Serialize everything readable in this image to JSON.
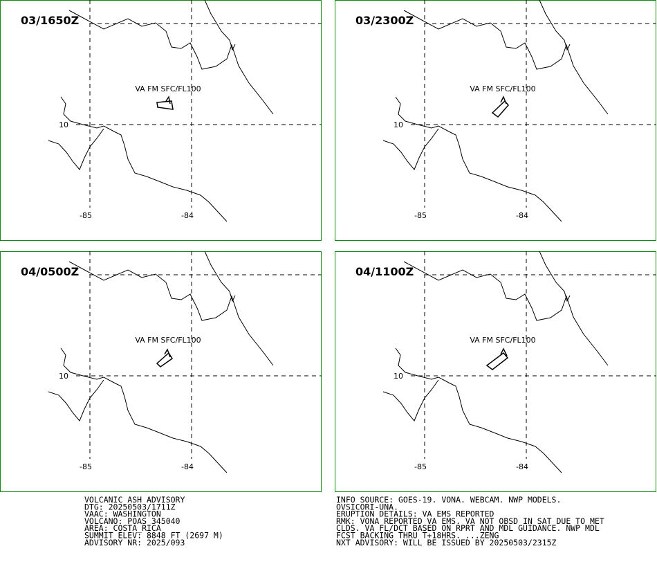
{
  "panels": [
    {
      "time": "03/1650Z",
      "layer": "VA FM SFC/FL100",
      "lat_label": "10",
      "lon_labels": [
        "-85",
        "-84"
      ]
    },
    {
      "time": "03/2300Z",
      "layer": "VA FM SFC/FL100",
      "lat_label": "10",
      "lon_labels": [
        "-85",
        "-84"
      ]
    },
    {
      "time": "04/0500Z",
      "layer": "VA FM SFC/FL100",
      "lat_label": "10",
      "lon_labels": [
        "-85",
        "-84"
      ]
    },
    {
      "time": "04/1100Z",
      "layer": "VA FM SFC/FL100",
      "lat_label": "10",
      "lon_labels": [
        "-85",
        "-84"
      ]
    }
  ],
  "advisory": {
    "left": [
      "VOLCANIC ASH ADVISORY",
      "DTG: 20250503/1711Z",
      "VAAC: WASHINGTON",
      "VOLCANO: POAS 345040",
      "AREA: COSTA_RICA",
      "SUMMIT ELEV: 8848 FT (2697 M)",
      "ADVISORY NR: 2025/093"
    ],
    "right": [
      "INFO SOURCE: GOES-19. VONA. WEBCAM. NWP MODELS.",
      "OVSICORI-UNA.",
      "ERUPTION DETAILS: VA EMS REPORTED",
      "RMK: VONA REPORTED VA EMS. VA NOT OBSD IN SAT DUE TO MET",
      "CLDS. VA FL/DCT BASED ON RPRT AND MDL GUIDANCE. NWP MDL",
      "FCST BACKING THRU T+18HRS. ...ZENG",
      "NXT ADVISORY: WILL BE ISSUED BY 20250503/2315Z"
    ]
  }
}
